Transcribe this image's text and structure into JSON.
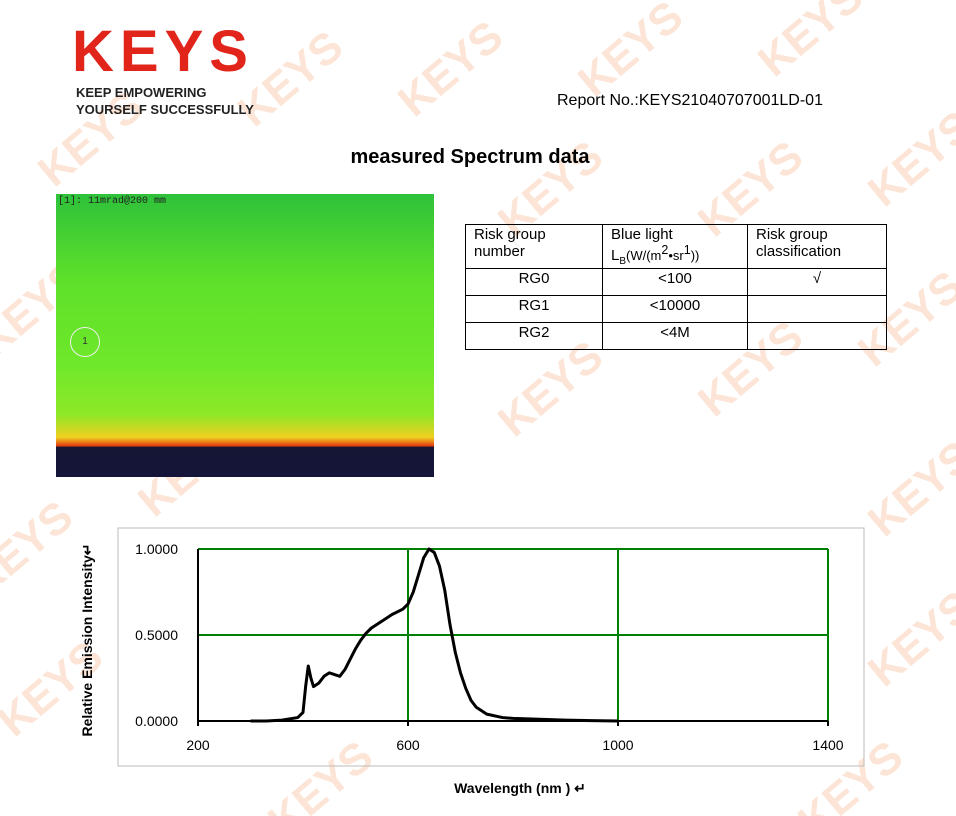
{
  "header": {
    "logo": "KEYS",
    "tagline": [
      "KEEP  EMPOWERING",
      "YOURSELF  SUCCESSFULLY"
    ],
    "report_no": "Report No.:KEYS21040707001LD-01"
  },
  "watermark": "KEYS",
  "title": "measured Spectrum data",
  "image": {
    "label": "[1]:  11mrad@200 mm",
    "marker": "1"
  },
  "table": {
    "headers": [
      [
        "Risk group",
        "number"
      ],
      {
        "line1": "Blue light",
        "symbol": "L",
        "subscript": "B",
        "unit_a": "(W/(m",
        "sup_a": "2",
        "unit_b": "•sr",
        "sup_b": "1",
        "unit_c": "))"
      },
      [
        "Risk group",
        "classification"
      ]
    ],
    "rows": [
      {
        "number": "RG0",
        "limit": "<100",
        "classification": "√"
      },
      {
        "number": "RG1",
        "limit": "<10000"
      },
      {
        "number": "RG2",
        "limit": "<4M"
      }
    ]
  },
  "chart_data": {
    "type": "line",
    "x_label": "Wavelength (nm )  ↵",
    "y_label": "Relative Emission Intensity↵",
    "color": "#000000",
    "grid": true,
    "x": [
      300,
      330,
      360,
      390,
      400,
      405,
      410,
      415,
      420,
      430,
      440,
      450,
      460,
      470,
      480,
      490,
      500,
      510,
      520,
      530,
      550,
      570,
      590,
      600,
      610,
      620,
      630,
      640,
      650,
      660,
      670,
      680,
      690,
      700,
      710,
      720,
      730,
      750,
      780,
      800,
      850,
      900,
      950,
      1000
    ],
    "values": [
      0,
      0,
      0.005,
      0.02,
      0.05,
      0.2,
      0.32,
      0.25,
      0.2,
      0.22,
      0.26,
      0.28,
      0.27,
      0.26,
      0.3,
      0.36,
      0.42,
      0.47,
      0.51,
      0.54,
      0.58,
      0.62,
      0.65,
      0.68,
      0.75,
      0.85,
      0.95,
      1.0,
      0.98,
      0.9,
      0.76,
      0.56,
      0.4,
      0.28,
      0.19,
      0.12,
      0.08,
      0.04,
      0.02,
      0.015,
      0.01,
      0.005,
      0.002,
      0
    ],
    "xlim": [
      200,
      1400
    ],
    "xticks": [
      200,
      600,
      1000,
      1400
    ],
    "ylim": [
      0,
      1
    ],
    "yticks": [
      {
        "value": 0,
        "label": "0.0000"
      },
      {
        "value": 0.5,
        "label": "0.5000"
      },
      {
        "value": 1,
        "label": "1.0000"
      }
    ]
  }
}
